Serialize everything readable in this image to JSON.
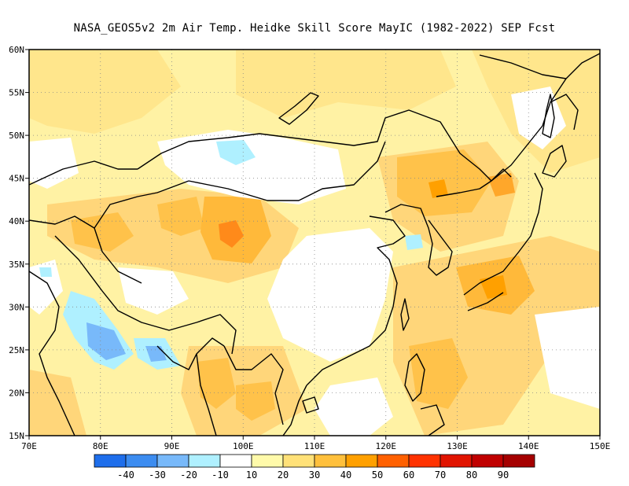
{
  "title": "NASA_GEOS5v2  2m Air Temp. Heidke Skill Score MayIC (1982-2022) SEP Fcst",
  "map": {
    "lon_ticks": [
      "70E",
      "80E",
      "90E",
      "100E",
      "110E",
      "120E",
      "130E",
      "140E",
      "150E"
    ],
    "lat_ticks": [
      "60N",
      "55N",
      "50N",
      "45N",
      "40N",
      "35N",
      "30N",
      "25N",
      "20N",
      "15N"
    ],
    "lon_range": [
      70,
      150
    ],
    "lat_range": [
      15,
      60
    ],
    "grid": "dotted"
  },
  "colorbar": {
    "labels": [
      "-40",
      "-30",
      "-20",
      "-10",
      "10",
      "20",
      "30",
      "40",
      "50",
      "60",
      "70",
      "80",
      "90"
    ],
    "colors": [
      "#1e6eeb",
      "#3c8cf0",
      "#78b9fa",
      "#aff0ff",
      "#ffffff",
      "#fffaaa",
      "#ffe178",
      "#ffc03c",
      "#ffa000",
      "#ff6000",
      "#ff3200",
      "#e11400",
      "#c00000",
      "#a50000"
    ]
  }
}
